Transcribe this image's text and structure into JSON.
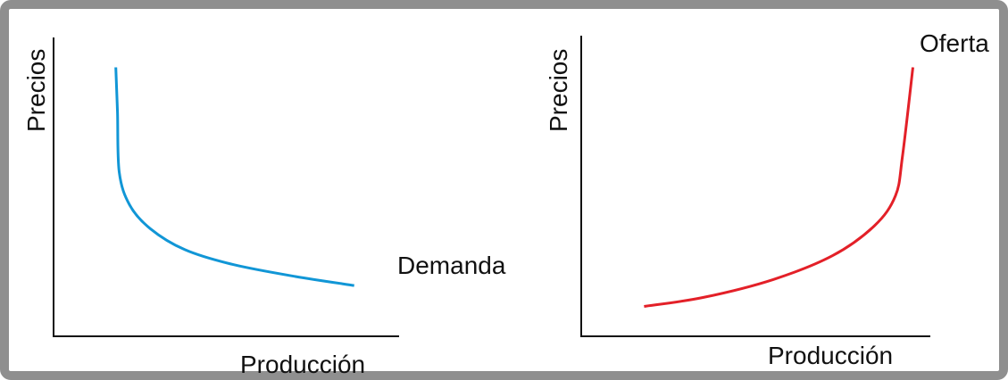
{
  "charts": [
    {
      "ylabel": "Precios",
      "xlabel": "Producción",
      "curve_label": "Demanda",
      "color": "#1196d6"
    },
    {
      "ylabel": "Precios",
      "xlabel": "Producción",
      "curve_label": "Oferta",
      "color": "#e32028"
    }
  ],
  "chart_data": [
    {
      "type": "line",
      "xlabel": "Producción",
      "ylabel": "Precios",
      "series": [
        {
          "name": "Demanda",
          "x": [
            0.18,
            0.185,
            0.19,
            0.22,
            0.28,
            0.38,
            0.52,
            0.7,
            0.87
          ],
          "y": [
            0.9,
            0.75,
            0.55,
            0.44,
            0.36,
            0.29,
            0.24,
            0.2,
            0.17
          ]
        }
      ],
      "xlim": [
        0,
        1
      ],
      "ylim": [
        0,
        1
      ],
      "grid": false
    },
    {
      "type": "line",
      "xlabel": "Producción",
      "ylabel": "Precios",
      "series": [
        {
          "name": "Oferta",
          "x": [
            0.18,
            0.35,
            0.55,
            0.72,
            0.84,
            0.9,
            0.92,
            0.95
          ],
          "y": [
            0.1,
            0.13,
            0.19,
            0.27,
            0.37,
            0.47,
            0.6,
            0.9
          ]
        }
      ],
      "xlim": [
        0,
        1
      ],
      "ylim": [
        0,
        1
      ],
      "grid": false
    }
  ]
}
